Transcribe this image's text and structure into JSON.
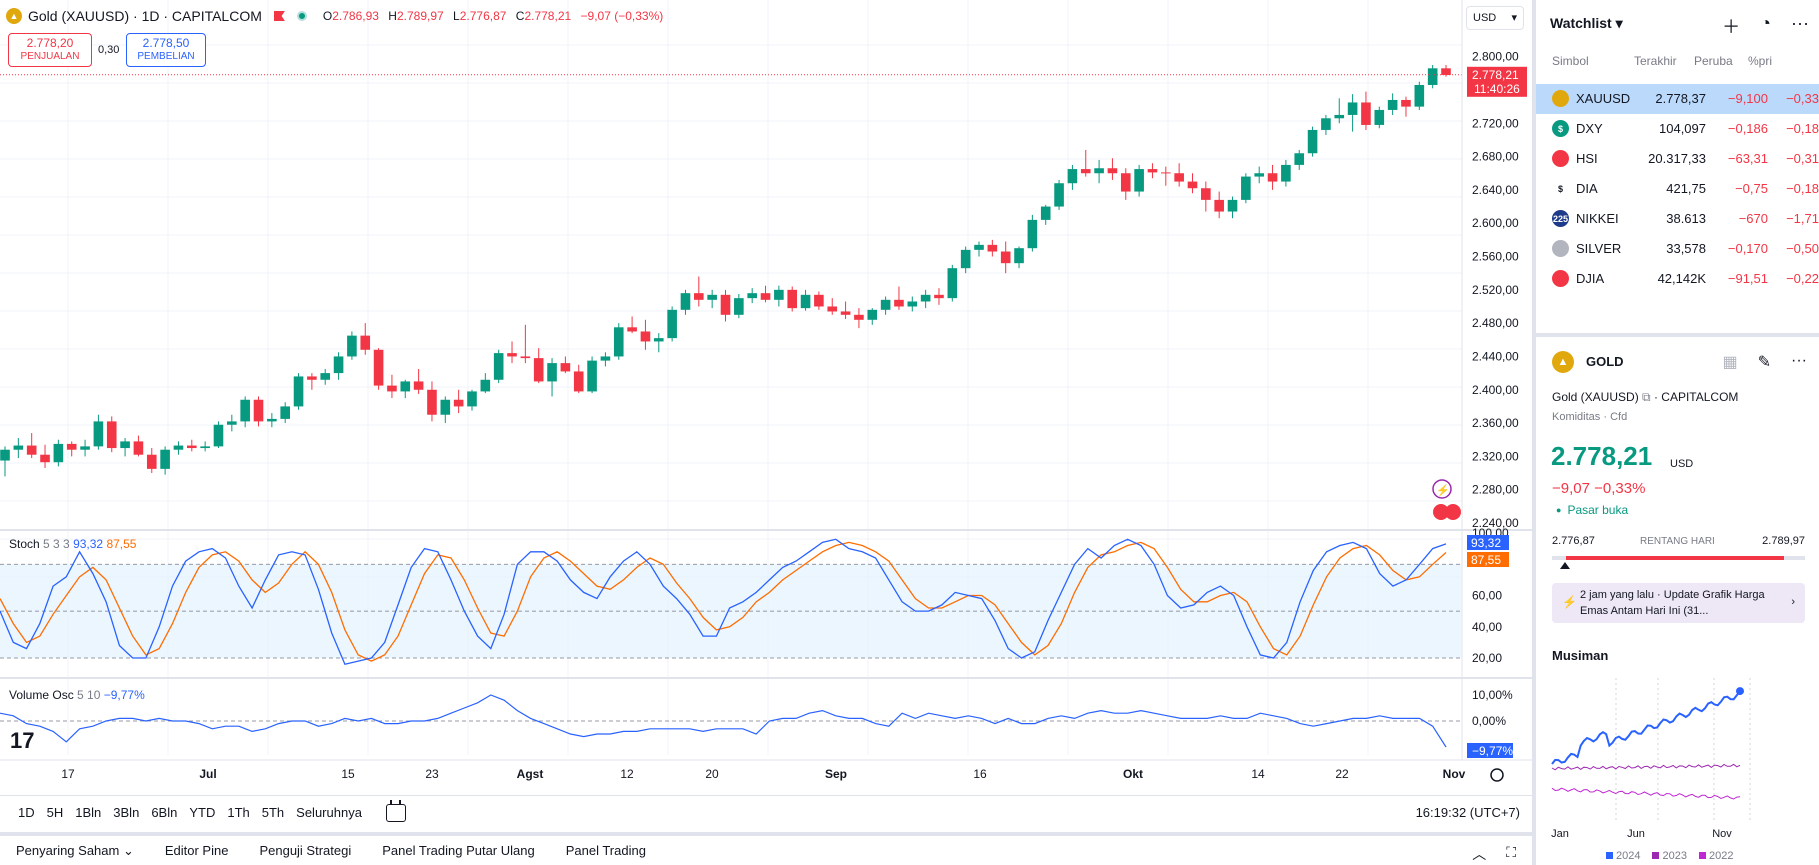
{
  "header": {
    "symbol_title": "Gold (XAUUSD) · 1D · CAPITALCOM",
    "open_label": "O",
    "open": "2.786,93",
    "high_label": "H",
    "high": "2.789,97",
    "low_label": "L",
    "low": "2.776,87",
    "close_label": "C",
    "close": "2.778,21",
    "change": "−9,07 (−0,33%)",
    "currency": "USD"
  },
  "trade": {
    "sell_price": "2.778,20",
    "sell_label": "PENJUALAN",
    "spread": "0,30",
    "buy_price": "2.778,50",
    "buy_label": "PEMBELIAN"
  },
  "price_axis": {
    "labels": [
      "2.800,00",
      "2.720,00",
      "2.680,00",
      "2.640,00",
      "2.600,00",
      "2.560,00",
      "2.520,00",
      "2.480,00",
      "2.440,00",
      "2.400,00",
      "2.360,00",
      "2.320,00",
      "2.280,00",
      "2.240,00"
    ],
    "current_price": "2.778,21",
    "countdown": "11:40:26"
  },
  "time_axis": [
    "17",
    "Jul",
    "15",
    "23",
    "Agst",
    "12",
    "20",
    "Sep",
    "16",
    "Okt",
    "14",
    "22",
    "Nov"
  ],
  "stoch": {
    "name": "Stoch",
    "params": "5 3 3",
    "k_value": "93,32",
    "d_value": "87,55",
    "axis": [
      "100,00",
      "60,00",
      "40,00",
      "20,00"
    ]
  },
  "volume_osc": {
    "name": "Volume Osc",
    "params": "5 10",
    "value": "−9,77%",
    "axis": [
      "10,00%",
      "0,00%"
    ],
    "badge": "−9,77%"
  },
  "logo_text": "17",
  "timeframes": [
    "1D",
    "5H",
    "1Bln",
    "3Bln",
    "6Bln",
    "YTD",
    "1Th",
    "5Th",
    "Seluruhnya"
  ],
  "clock": "16:19:32 (UTC+7)",
  "bottom_tabs": [
    "Penyaring Saham",
    "Editor Pine",
    "Penguji Strategi",
    "Panel Trading Putar Ulang",
    "Panel Trading"
  ],
  "watchlist": {
    "title": "Watchlist",
    "columns": [
      "Simbol",
      "Terakhir",
      "Peruba",
      "%pri"
    ],
    "rows": [
      {
        "symbol": "XAUUSD",
        "last": "2.778,37",
        "chg": "−9,100",
        "pct": "−0,33",
        "icon_color": "#e0a80d",
        "icon": "gold-icon"
      },
      {
        "symbol": "DXY",
        "last": "104,097",
        "chg": "−0,186",
        "pct": "−0,18",
        "icon_color": "#089981",
        "icon": "dollar-icon"
      },
      {
        "symbol": "HSI",
        "last": "20.317,33",
        "chg": "−63,31",
        "pct": "−0,31",
        "icon_color": "#f23645",
        "icon": "hsi-icon"
      },
      {
        "symbol": "DIA",
        "last": "421,75",
        "chg": "−0,75",
        "pct": "−0,18",
        "icon_color": "#ffffff",
        "icon": "dollar-icon"
      },
      {
        "symbol": "NIKKEI",
        "last": "38.613",
        "chg": "−670",
        "pct": "−1,71",
        "icon_color": "#1e3a8a",
        "icon": "nikkei-icon"
      },
      {
        "symbol": "SILVER",
        "last": "33,578",
        "chg": "−0,170",
        "pct": "−0,50",
        "icon_color": "#b2b5be",
        "icon": "silver-icon"
      },
      {
        "symbol": "DJIA",
        "last": "42,142K",
        "chg": "−91,51",
        "pct": "−0,22",
        "icon_color": "#f23645",
        "icon": "us-flag-icon"
      }
    ]
  },
  "detail": {
    "title": "GOLD",
    "name": "Gold (XAUUSD)",
    "exchange": "· CAPITALCOM",
    "category": "Komiditas · Cfd",
    "price": "2.778,21",
    "currency": "USD",
    "change": "−9,07  −0,33%",
    "market_status": "Pasar buka",
    "range_low": "2.776,87",
    "range_label": "RENTANG HARI",
    "range_high": "2.789,97",
    "news": "2 jam yang lalu · Update Grafik Harga Emas Antam Hari Ini (31..."
  },
  "seasonal": {
    "title": "Musiman",
    "x_labels": [
      "Jan",
      "Jun",
      "Nov"
    ],
    "legend": [
      "2024",
      "2023",
      "2022"
    ],
    "colors": [
      "#2962ff",
      "#9c27b0",
      "#c026d3"
    ]
  },
  "colors": {
    "up": "#089981",
    "down": "#f23645",
    "accent": "#2962ff",
    "stoch_k": "#2962ff",
    "stoch_d": "#ff6d00"
  },
  "chart_data": {
    "type": "candlestick",
    "ylim": [
      2240,
      2820
    ],
    "ohlc": [
      [
        2315,
        2332,
        2296,
        2328
      ],
      [
        2328,
        2342,
        2318,
        2333
      ],
      [
        2333,
        2348,
        2318,
        2322
      ],
      [
        2322,
        2334,
        2306,
        2313
      ],
      [
        2313,
        2340,
        2308,
        2335
      ],
      [
        2335,
        2338,
        2320,
        2328
      ],
      [
        2328,
        2340,
        2320,
        2332
      ],
      [
        2332,
        2370,
        2328,
        2362
      ],
      [
        2362,
        2368,
        2325,
        2330
      ],
      [
        2330,
        2342,
        2320,
        2338
      ],
      [
        2338,
        2345,
        2320,
        2322
      ],
      [
        2322,
        2330,
        2300,
        2305
      ],
      [
        2305,
        2332,
        2298,
        2328
      ],
      [
        2328,
        2338,
        2322,
        2333
      ],
      [
        2333,
        2340,
        2326,
        2330
      ],
      [
        2330,
        2338,
        2326,
        2332
      ],
      [
        2332,
        2362,
        2330,
        2358
      ],
      [
        2358,
        2370,
        2350,
        2362
      ],
      [
        2362,
        2392,
        2355,
        2388
      ],
      [
        2388,
        2392,
        2356,
        2362
      ],
      [
        2362,
        2372,
        2355,
        2365
      ],
      [
        2365,
        2385,
        2360,
        2380
      ],
      [
        2380,
        2420,
        2376,
        2416
      ],
      [
        2416,
        2420,
        2400,
        2412
      ],
      [
        2412,
        2425,
        2406,
        2420
      ],
      [
        2420,
        2445,
        2412,
        2440
      ],
      [
        2440,
        2470,
        2436,
        2465
      ],
      [
        2465,
        2480,
        2442,
        2448
      ],
      [
        2448,
        2450,
        2400,
        2405
      ],
      [
        2405,
        2418,
        2390,
        2398
      ],
      [
        2398,
        2412,
        2390,
        2410
      ],
      [
        2410,
        2425,
        2395,
        2400
      ],
      [
        2400,
        2410,
        2362,
        2370
      ],
      [
        2370,
        2392,
        2360,
        2388
      ],
      [
        2388,
        2400,
        2372,
        2380
      ],
      [
        2380,
        2400,
        2375,
        2398
      ],
      [
        2398,
        2420,
        2396,
        2412
      ],
      [
        2412,
        2448,
        2408,
        2444
      ],
      [
        2444,
        2458,
        2432,
        2440
      ],
      [
        2440,
        2478,
        2432,
        2438
      ],
      [
        2438,
        2450,
        2408,
        2410
      ],
      [
        2410,
        2438,
        2392,
        2432
      ],
      [
        2432,
        2440,
        2420,
        2422
      ],
      [
        2422,
        2430,
        2396,
        2398
      ],
      [
        2398,
        2440,
        2396,
        2435
      ],
      [
        2435,
        2445,
        2428,
        2440
      ],
      [
        2440,
        2480,
        2436,
        2475
      ],
      [
        2475,
        2488,
        2468,
        2470
      ],
      [
        2470,
        2484,
        2448,
        2458
      ],
      [
        2458,
        2468,
        2445,
        2462
      ],
      [
        2462,
        2500,
        2458,
        2496
      ],
      [
        2496,
        2520,
        2490,
        2516
      ],
      [
        2516,
        2536,
        2500,
        2508
      ],
      [
        2508,
        2520,
        2498,
        2514
      ],
      [
        2514,
        2520,
        2482,
        2490
      ],
      [
        2490,
        2515,
        2486,
        2510
      ],
      [
        2510,
        2522,
        2504,
        2516
      ],
      [
        2516,
        2525,
        2505,
        2508
      ],
      [
        2508,
        2525,
        2500,
        2520
      ],
      [
        2520,
        2524,
        2494,
        2498
      ],
      [
        2498,
        2520,
        2495,
        2514
      ],
      [
        2514,
        2518,
        2496,
        2500
      ],
      [
        2500,
        2510,
        2490,
        2494
      ],
      [
        2494,
        2506,
        2485,
        2490
      ],
      [
        2490,
        2498,
        2474,
        2484
      ],
      [
        2484,
        2498,
        2478,
        2496
      ],
      [
        2496,
        2512,
        2490,
        2508
      ],
      [
        2508,
        2524,
        2496,
        2500
      ],
      [
        2500,
        2512,
        2494,
        2506
      ],
      [
        2506,
        2520,
        2498,
        2514
      ],
      [
        2514,
        2522,
        2502,
        2510
      ],
      [
        2510,
        2550,
        2506,
        2546
      ],
      [
        2546,
        2572,
        2540,
        2568
      ],
      [
        2568,
        2578,
        2560,
        2574
      ],
      [
        2574,
        2580,
        2560,
        2566
      ],
      [
        2566,
        2578,
        2540,
        2552
      ],
      [
        2552,
        2572,
        2546,
        2570
      ],
      [
        2570,
        2610,
        2566,
        2604
      ],
      [
        2604,
        2622,
        2598,
        2620
      ],
      [
        2620,
        2652,
        2616,
        2648
      ],
      [
        2648,
        2670,
        2640,
        2665
      ],
      [
        2665,
        2688,
        2656,
        2660
      ],
      [
        2660,
        2676,
        2648,
        2666
      ],
      [
        2666,
        2678,
        2652,
        2660
      ],
      [
        2660,
        2666,
        2628,
        2638
      ],
      [
        2638,
        2670,
        2632,
        2665
      ],
      [
        2665,
        2672,
        2654,
        2661
      ],
      [
        2661,
        2668,
        2645,
        2660
      ],
      [
        2660,
        2672,
        2644,
        2650
      ],
      [
        2650,
        2660,
        2636,
        2642
      ],
      [
        2642,
        2650,
        2614,
        2628
      ],
      [
        2628,
        2638,
        2606,
        2614
      ],
      [
        2614,
        2632,
        2606,
        2628
      ],
      [
        2628,
        2660,
        2624,
        2656
      ],
      [
        2656,
        2668,
        2648,
        2660
      ],
      [
        2660,
        2670,
        2640,
        2650
      ],
      [
        2650,
        2676,
        2644,
        2670
      ],
      [
        2670,
        2688,
        2664,
        2684
      ],
      [
        2684,
        2716,
        2680,
        2712
      ],
      [
        2712,
        2730,
        2706,
        2726
      ],
      [
        2726,
        2750,
        2720,
        2730
      ],
      [
        2730,
        2755,
        2710,
        2745
      ],
      [
        2745,
        2758,
        2712,
        2718
      ],
      [
        2718,
        2740,
        2714,
        2736
      ],
      [
        2736,
        2756,
        2730,
        2748
      ],
      [
        2748,
        2752,
        2728,
        2740
      ],
      [
        2740,
        2770,
        2736,
        2766
      ],
      [
        2766,
        2790,
        2762,
        2786
      ],
      [
        2786,
        2790,
        2776,
        2778
      ]
    ],
    "stoch_k": [
      50,
      30,
      26,
      42,
      66,
      72,
      88,
      74,
      56,
      28,
      20,
      20,
      40,
      66,
      82,
      88,
      90,
      84,
      66,
      52,
      70,
      86,
      88,
      86,
      64,
      36,
      16,
      18,
      20,
      30,
      54,
      78,
      90,
      88,
      70,
      50,
      34,
      26,
      48,
      80,
      88,
      88,
      82,
      70,
      62,
      58,
      72,
      82,
      88,
      80,
      66,
      58,
      48,
      34,
      34,
      52,
      56,
      62,
      70,
      78,
      82,
      88,
      94,
      96,
      90,
      88,
      84,
      70,
      56,
      50,
      50,
      54,
      62,
      60,
      58,
      44,
      26,
      20,
      24,
      44,
      62,
      80,
      90,
      84,
      92,
      96,
      92,
      80,
      60,
      52,
      54,
      62,
      66,
      60,
      40,
      22,
      20,
      30,
      56,
      76,
      88,
      92,
      94,
      90,
      74,
      66,
      70,
      80,
      90,
      93
    ],
    "stoch_d": [
      58,
      42,
      30,
      34,
      48,
      60,
      72,
      78,
      70,
      52,
      34,
      22,
      26,
      42,
      62,
      78,
      86,
      88,
      82,
      70,
      62,
      68,
      80,
      88,
      80,
      62,
      38,
      22,
      18,
      22,
      34,
      54,
      74,
      86,
      84,
      70,
      52,
      36,
      34,
      50,
      72,
      84,
      88,
      82,
      74,
      66,
      64,
      70,
      78,
      84,
      80,
      68,
      58,
      46,
      38,
      40,
      46,
      56,
      62,
      70,
      76,
      82,
      88,
      92,
      94,
      92,
      88,
      82,
      70,
      58,
      52,
      52,
      56,
      60,
      60,
      54,
      42,
      30,
      22,
      28,
      42,
      62,
      78,
      86,
      88,
      92,
      94,
      90,
      78,
      64,
      56,
      56,
      60,
      62,
      56,
      40,
      26,
      22,
      34,
      54,
      72,
      84,
      90,
      92,
      86,
      76,
      70,
      72,
      80,
      87.55
    ]
  }
}
